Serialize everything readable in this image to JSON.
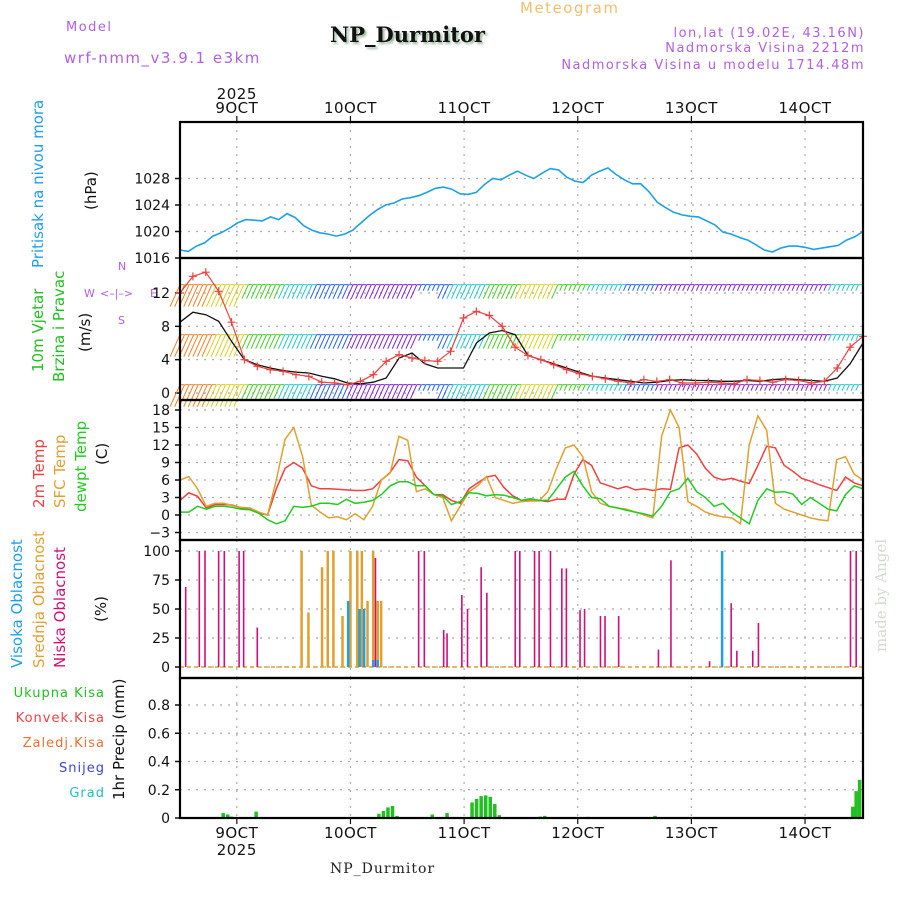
{
  "header": {
    "model_label": "Model",
    "model_name": "wrf-nmm_v3.9.1 e3km",
    "station_title": "NP_Durmitor",
    "product": "Meteogram",
    "coords": "lon,lat (19.02E, 43.16N)",
    "elevation": "Nadmorska Visina 2212m",
    "model_elevation": "Nadmorska Visina u modelu 1714.48m",
    "footer_station": "NP_Durmitor",
    "watermark": "made by Angel"
  },
  "colors": {
    "pressure": "#1ea0e8",
    "temp2m": "#f04040",
    "sfc_temp": "#e0a030",
    "dewpt": "#20cc20",
    "high_cloud": "#1ea0e8",
    "mid_cloud": "#e0a030",
    "low_cloud": "#d0107a",
    "model_label": "#b060e0",
    "product": "#f0c070",
    "precip_total": "#20c020",
    "precip_conv": "#f04040",
    "precip_frz": "#f07030",
    "snow": "#4040e0",
    "hail": "#20c0c0",
    "wind_label": "#20c020",
    "compass": "#b060e0"
  },
  "compass": {
    "n": "N",
    "s": "S",
    "e": "E",
    "w": "W"
  },
  "chart_data": [
    {
      "id": "pressure",
      "type": "line",
      "ylabel": "(hPa)",
      "side_label": "Pritisak na nivou mora",
      "yticks": [
        1016,
        1020,
        1024,
        1028
      ],
      "ylim": [
        1016,
        1030
      ],
      "x_start_day": 8.5,
      "x_step_hours": 3,
      "series": [
        {
          "name": "Pritisak na nivou mora",
          "values": [
            1017.2,
            1017.0,
            1017.8,
            1018.3,
            1019.3,
            1019.8,
            1020.5,
            1021.3,
            1021.8,
            1021.7,
            1021.6,
            1022.2,
            1021.8,
            1022.7,
            1022.1,
            1020.9,
            1020.2,
            1019.8,
            1019.6,
            1019.3,
            1019.6,
            1020.2,
            1021.3,
            1022.4,
            1023.3,
            1024.0,
            1024.3,
            1024.9,
            1025.1,
            1025.4,
            1025.9,
            1026.5,
            1026.7,
            1026.4,
            1025.7,
            1025.6,
            1025.9,
            1027.1,
            1028.0,
            1027.8,
            1028.5,
            1029.1,
            1028.5,
            1028.0,
            1028.8,
            1029.5,
            1029.3,
            1028.2,
            1027.6,
            1027.4,
            1028.5,
            1029.1,
            1029.6,
            1028.6,
            1027.8,
            1027.2,
            1027.2,
            1026.0,
            1024.4,
            1023.6,
            1022.9,
            1022.5,
            1022.3,
            1022.2,
            1021.6,
            1021.0,
            1019.9,
            1019.6,
            1019.1,
            1018.7,
            1018.0,
            1017.2,
            1016.9,
            1017.5,
            1017.8,
            1017.8,
            1017.6,
            1017.3,
            1017.5,
            1017.7,
            1017.9,
            1018.7,
            1019.2,
            1020.0
          ]
        }
      ]
    },
    {
      "id": "wind",
      "type": "line",
      "ylabel": "(m/s)",
      "side_label": [
        "10m Vjetar",
        "Brzina i Pravac"
      ],
      "yticks": [
        0,
        4,
        8,
        12
      ],
      "ylim": [
        -0.6,
        15.6
      ],
      "x_start_day": 8.5,
      "x_step_hours": 3,
      "series": [
        {
          "name": "Brzina (mean)",
          "color": "#111111",
          "values": [
            8.5,
            9.7,
            9.4,
            8.6,
            6.2,
            4.0,
            3.4,
            3.0,
            2.7,
            2.5,
            2.4,
            2.0,
            1.7,
            1.2,
            1.1,
            1.3,
            1.8,
            4.2,
            4.8,
            3.5,
            3.0,
            3.0,
            3.0,
            6.0,
            7.2,
            7.5,
            7.0,
            4.5,
            4.0,
            3.5,
            3.0,
            2.5,
            2.0,
            1.8,
            1.6,
            1.4,
            1.2,
            1.3,
            1.5,
            1.6,
            1.5,
            1.5,
            1.4,
            1.4,
            1.5,
            1.4,
            1.6,
            1.7,
            1.6,
            1.5,
            1.4,
            1.8,
            3.5,
            6.0
          ]
        },
        {
          "name": "Udari (gust)",
          "color": "#f04040",
          "marker": "+",
          "values": [
            12.0,
            14.0,
            14.5,
            12.2,
            8.5,
            4.0,
            3.2,
            2.8,
            2.6,
            2.2,
            2.0,
            1.3,
            1.2,
            1.0,
            1.4,
            2.2,
            3.8,
            4.6,
            4.2,
            3.9,
            3.8,
            5.0,
            9.0,
            9.8,
            9.3,
            8.0,
            5.5,
            4.5,
            4.0,
            3.4,
            2.8,
            2.3,
            2.0,
            1.7,
            1.4,
            1.2,
            1.6,
            1.4,
            1.6,
            1.2,
            1.2,
            1.3,
            1.2,
            1.1,
            1.6,
            1.5,
            1.3,
            1.6,
            1.5,
            1.2,
            1.4,
            3.0,
            5.5,
            6.8
          ]
        }
      ],
      "barb_levels": [
        1.0,
        7.0,
        13.0
      ],
      "barb_hue_path": [
        "orange",
        "yellow",
        "green",
        "cyan",
        "blue",
        "purple",
        "purple",
        "blue",
        "cyan",
        "green",
        "yellow",
        "green",
        "cyan",
        "blue",
        "purple",
        "purple",
        "purple",
        "purple",
        "purple",
        "cyan"
      ]
    },
    {
      "id": "temperature",
      "type": "line",
      "ylabel": "(C)",
      "side_label": [
        "2m Temp",
        "SFC Temp",
        "dewpt Temp"
      ],
      "yticks": [
        -3,
        0,
        3,
        6,
        9,
        12,
        15,
        18
      ],
      "ylim": [
        -3.5,
        18.5
      ],
      "x_start_day": 8.5,
      "x_step_hours": 3,
      "series": [
        {
          "name": "2m Temp",
          "color": "#f04040",
          "values": [
            2.5,
            3.8,
            3.2,
            1.2,
            1.8,
            1.8,
            1.7,
            1.2,
            1.0,
            0.3,
            0.0,
            4.5,
            8.0,
            9.0,
            8.0,
            5.0,
            4.5,
            4.5,
            4.4,
            4.3,
            4.2,
            4.2,
            4.5,
            6.0,
            7.3,
            9.5,
            9.3,
            6.5,
            5.0,
            3.5,
            3.5,
            2.5,
            2.0,
            4.5,
            5.5,
            6.5,
            6.8,
            4.7,
            3.3,
            2.5,
            2.5,
            2.5,
            2.3,
            2.7,
            2.7,
            7.0,
            9.5,
            8.5,
            5.5,
            5.0,
            4.5,
            4.9,
            4.3,
            4.5,
            4.2,
            4.5,
            4.4,
            11.5,
            12.0,
            10.5,
            8.0,
            6.5,
            6.0,
            6.3,
            5.8,
            5.4,
            8.5,
            11.8,
            11.5,
            8.5,
            7.5,
            6.3,
            5.8,
            5.2,
            4.7,
            4.2,
            6.5,
            5.5,
            5.0
          ]
        },
        {
          "name": "SFC Temp",
          "color": "#e0a030",
          "values": [
            6.0,
            6.6,
            4.5,
            1.5,
            2.0,
            2.0,
            1.6,
            1.3,
            1.2,
            0.5,
            0.0,
            6.0,
            13.0,
            15.0,
            10.0,
            1.7,
            0.5,
            -0.5,
            -0.3,
            -0.8,
            0.2,
            -0.8,
            1.5,
            6.0,
            7.2,
            13.5,
            12.8,
            4.0,
            4.5,
            3.5,
            3.0,
            -1.0,
            1.5,
            4.0,
            5.0,
            6.6,
            3.0,
            2.5,
            2.0,
            2.3,
            2.4,
            2.4,
            4.0,
            8.0,
            11.5,
            12.0,
            10.0,
            4.0,
            2.0,
            1.5,
            1.2,
            1.0,
            0.5,
            0.0,
            -0.5,
            13.5,
            18.0,
            15.0,
            2.3,
            1.5,
            0.5,
            0.0,
            -0.3,
            -0.5,
            -1.5,
            12.0,
            17.0,
            14.5,
            2.0,
            1.0,
            0.5,
            0.0,
            -0.5,
            -0.8,
            -1.0,
            9.5,
            10.0,
            7.0,
            6.0
          ]
        },
        {
          "name": "dewpt Temp",
          "color": "#20cc20",
          "values": [
            0.5,
            0.5,
            1.5,
            1.0,
            1.5,
            1.5,
            1.3,
            1.0,
            0.9,
            0.3,
            -0.8,
            -1.5,
            -1.0,
            1.5,
            1.3,
            1.5,
            2.0,
            2.0,
            1.8,
            2.7,
            2.0,
            2.2,
            2.5,
            3.5,
            5.0,
            5.7,
            5.7,
            5.0,
            5.0,
            3.5,
            3.3,
            1.8,
            2.3,
            3.8,
            3.7,
            3.3,
            3.5,
            3.4,
            3.0,
            2.5,
            2.8,
            2.5,
            2.5,
            4.5,
            6.5,
            7.5,
            5.0,
            3.0,
            2.8,
            1.5,
            1.2,
            0.8,
            0.5,
            0.2,
            -0.2,
            1.5,
            4.0,
            4.5,
            6.3,
            4.0,
            3.0,
            1.5,
            2.0,
            0.5,
            -0.5,
            -1.5,
            2.5,
            4.5,
            3.9,
            4.0,
            3.6,
            1.8,
            3.0,
            2.0,
            1.0,
            0.7,
            3.5,
            5.0,
            4.5
          ]
        }
      ]
    },
    {
      "id": "cloud",
      "type": "bar",
      "ylabel": "(%)",
      "side_label": [
        "Visoka Oblacnost",
        "Srednja Oblacnost",
        "Niska Oblacnost"
      ],
      "yticks": [
        0,
        25,
        50,
        75,
        100
      ],
      "ylim": [
        0,
        100
      ],
      "x_start_day": 8.5,
      "bars": {
        "low": [
          [
            8.55,
            69
          ],
          [
            8.67,
            100
          ],
          [
            8.72,
            100
          ],
          [
            8.84,
            100
          ],
          [
            8.89,
            100
          ],
          [
            9.02,
            100
          ],
          [
            9.06,
            100
          ],
          [
            9.18,
            34
          ],
          [
            10.22,
            94
          ],
          [
            10.6,
            100
          ],
          [
            10.65,
            100
          ],
          [
            10.82,
            32
          ],
          [
            10.85,
            29
          ],
          [
            10.98,
            62
          ],
          [
            11.03,
            50
          ],
          [
            11.15,
            86
          ],
          [
            11.2,
            64
          ],
          [
            11.45,
            100
          ],
          [
            11.49,
            100
          ],
          [
            11.62,
            100
          ],
          [
            11.66,
            100
          ],
          [
            11.76,
            100
          ],
          [
            11.86,
            85
          ],
          [
            11.9,
            85
          ],
          [
            12.02,
            49
          ],
          [
            12.06,
            50
          ],
          [
            12.2,
            44
          ],
          [
            12.24,
            44
          ],
          [
            12.36,
            44
          ],
          [
            12.71,
            15
          ],
          [
            12.82,
            92
          ],
          [
            13.16,
            5
          ],
          [
            13.35,
            55
          ],
          [
            13.4,
            14
          ],
          [
            13.54,
            14
          ],
          [
            13.59,
            38
          ],
          [
            14.4,
            100
          ],
          [
            14.45,
            100
          ]
        ],
        "mid": [
          [
            9.57,
            100
          ],
          [
            9.63,
            47
          ],
          [
            9.75,
            86
          ],
          [
            9.8,
            100
          ],
          [
            9.85,
            100
          ],
          [
            9.93,
            44
          ],
          [
            10.0,
            100
          ],
          [
            10.06,
            100
          ],
          [
            10.1,
            100
          ],
          [
            10.15,
            57
          ],
          [
            10.2,
            100
          ],
          [
            10.24,
            57
          ],
          [
            10.27,
            57
          ]
        ],
        "high": [
          [
            9.98,
            57
          ],
          [
            10.08,
            50
          ],
          [
            10.12,
            50
          ],
          [
            10.2,
            6
          ],
          [
            10.24,
            6
          ],
          [
            13.27,
            100
          ]
        ]
      }
    },
    {
      "id": "precip",
      "type": "bar",
      "ylabel": "1hr Precip (mm)",
      "legend": [
        "Ukupna Kisa",
        "Konvek.Kisa",
        "Zaledj.Kisa",
        "Snijeg",
        "Grad"
      ],
      "yticks": [
        0,
        0.2,
        0.4,
        0.6,
        0.8
      ],
      "ylim": [
        0,
        0.95
      ],
      "x_start_day": 8.5,
      "bars": {
        "total": [
          [
            8.88,
            0.035
          ],
          [
            8.92,
            0.025
          ],
          [
            8.95,
            0.01
          ],
          [
            9.17,
            0.045
          ],
          [
            10.25,
            0.03
          ],
          [
            10.29,
            0.05
          ],
          [
            10.33,
            0.075
          ],
          [
            10.37,
            0.085
          ],
          [
            10.41,
            0.015
          ],
          [
            10.72,
            0.025
          ],
          [
            10.85,
            0.035
          ],
          [
            11.07,
            0.11
          ],
          [
            11.11,
            0.135
          ],
          [
            11.15,
            0.155
          ],
          [
            11.19,
            0.16
          ],
          [
            11.23,
            0.15
          ],
          [
            11.27,
            0.1
          ],
          [
            11.31,
            0.02
          ],
          [
            11.67,
            0.01
          ],
          [
            11.71,
            0.015
          ],
          [
            12.09,
            0.008
          ],
          [
            12.68,
            0.015
          ],
          [
            13.6,
            0.005
          ],
          [
            14.42,
            0.08
          ],
          [
            14.45,
            0.19
          ],
          [
            14.48,
            0.27
          ]
        ]
      },
      "xticks": [
        "9OCT",
        "10OCT",
        "11OCT",
        "12OCT",
        "13OCT",
        "14OCT"
      ],
      "year_label": "2025"
    }
  ],
  "x_axis": {
    "ticks": [
      "9OCT",
      "10OCT",
      "11OCT",
      "12OCT",
      "13OCT",
      "14OCT"
    ],
    "tick_days": [
      9,
      10,
      11,
      12,
      13,
      14
    ],
    "year": "2025",
    "range_days": [
      8.5,
      14.51
    ]
  }
}
